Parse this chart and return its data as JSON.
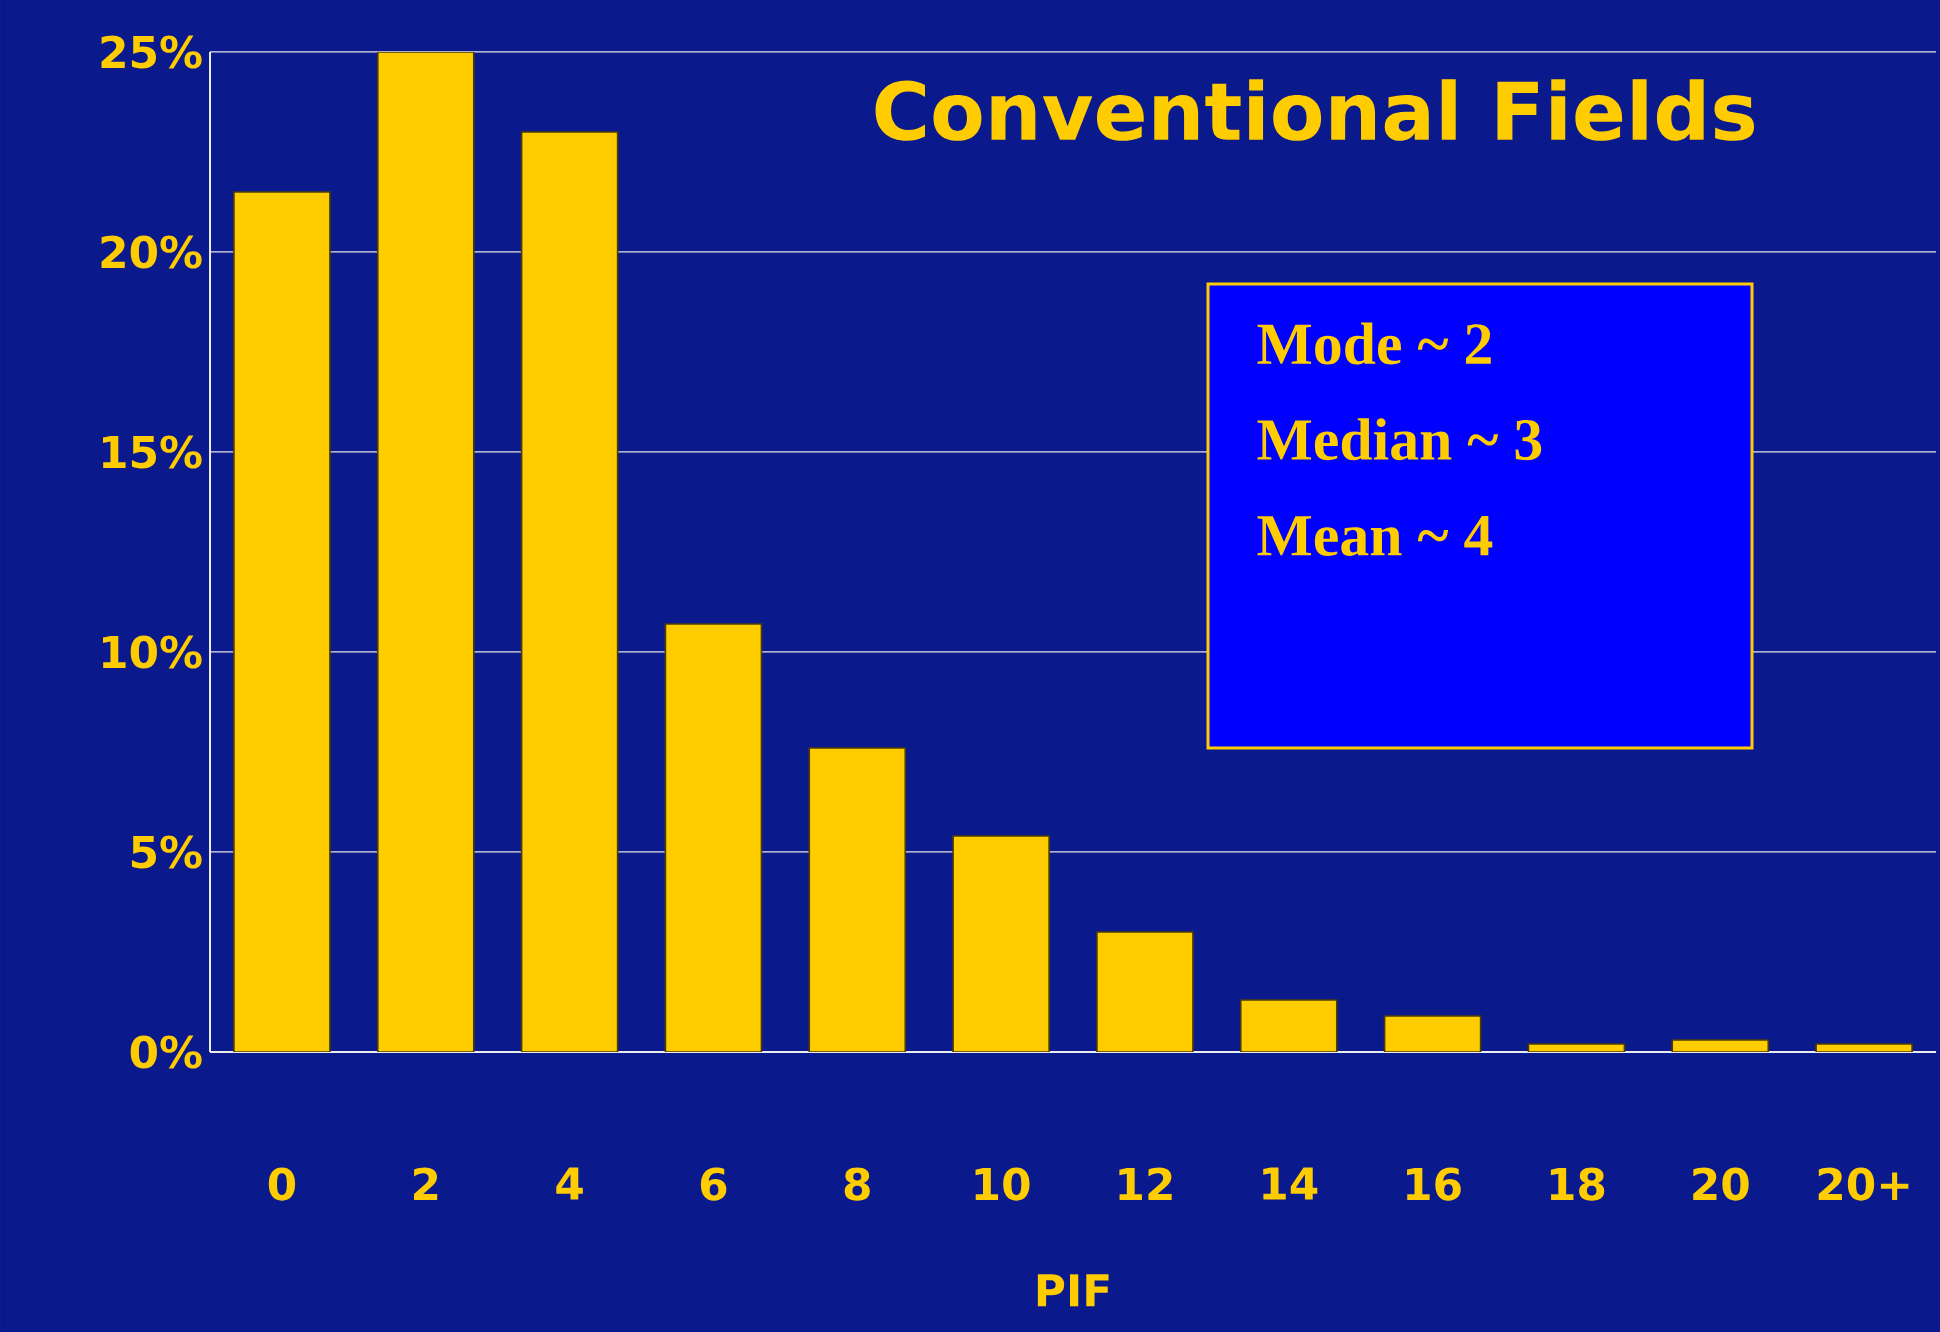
{
  "chart_data": {
    "type": "bar",
    "title": "Conventional Fields",
    "xlabel": "PIF",
    "categories": [
      "0",
      "2",
      "4",
      "6",
      "8",
      "10",
      "12",
      "14",
      "16",
      "18",
      "20",
      "20+"
    ],
    "values": [
      21.5,
      25,
      23,
      10.7,
      7.6,
      5.4,
      3.0,
      1.3,
      0.9,
      0.2,
      0.3,
      0.2
    ],
    "color": "#ffcc00",
    "ylim": [
      0,
      25
    ],
    "yticks": [
      {
        "value": 0,
        "label": "0%"
      },
      {
        "value": 5,
        "label": "5%"
      },
      {
        "value": 10,
        "label": "10%"
      },
      {
        "value": 15,
        "label": "15%"
      },
      {
        "value": 20,
        "label": "20%"
      },
      {
        "value": 25,
        "label": "25%"
      }
    ],
    "grid": "y",
    "annotations": [
      "Mode  ~   2",
      "Median ~ 3",
      "Mean    ~  4"
    ]
  }
}
